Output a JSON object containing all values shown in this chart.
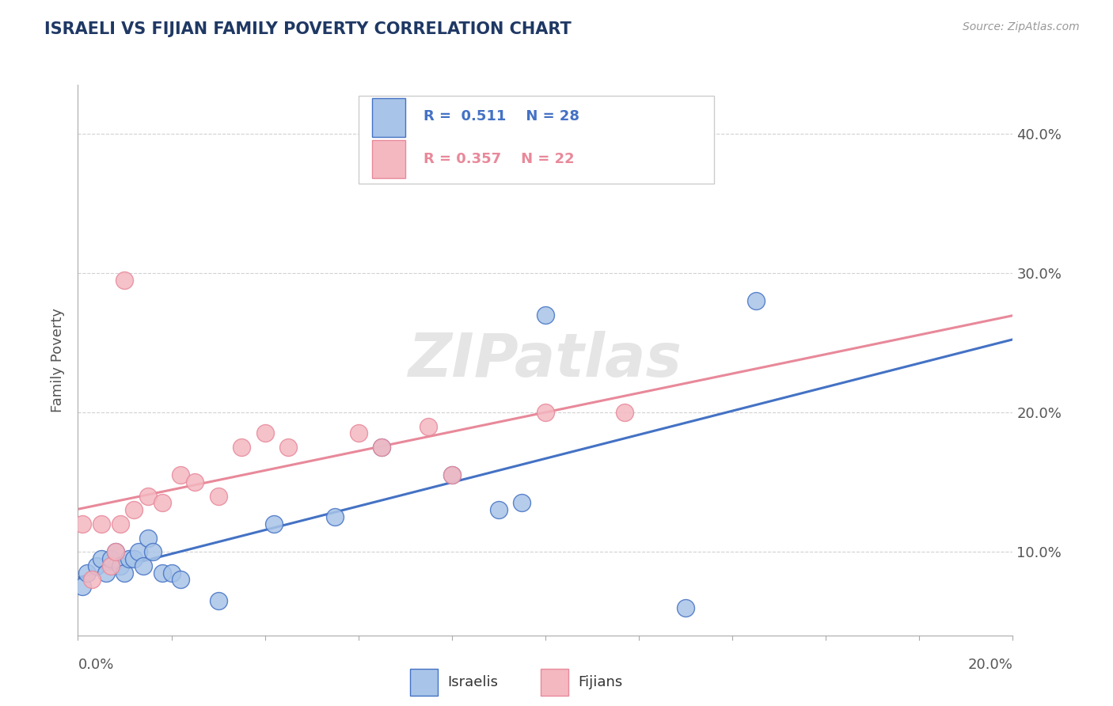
{
  "title": "ISRAELI VS FIJIAN FAMILY POVERTY CORRELATION CHART",
  "source": "Source: ZipAtlas.com",
  "ylabel": "Family Poverty",
  "r_israeli": 0.511,
  "n_israeli": 28,
  "r_fijian": 0.357,
  "n_fijian": 22,
  "xlim": [
    0.0,
    0.2
  ],
  "ylim": [
    0.04,
    0.435
  ],
  "yticks_right": [
    0.1,
    0.2,
    0.3,
    0.4
  ],
  "ytick_labels_right": [
    "10.0%",
    "20.0%",
    "30.0%",
    "40.0%"
  ],
  "color_israeli": "#A8C4E8",
  "color_fijian": "#F4B8C1",
  "color_israeli_line": "#4472C4",
  "color_fijian_line": "#E8899A",
  "color_title": "#1F3864",
  "israeli_x": [
    0.001,
    0.002,
    0.004,
    0.005,
    0.006,
    0.007,
    0.008,
    0.009,
    0.01,
    0.011,
    0.012,
    0.013,
    0.014,
    0.015,
    0.016,
    0.018,
    0.02,
    0.022,
    0.03,
    0.042,
    0.055,
    0.065,
    0.08,
    0.09,
    0.095,
    0.1,
    0.13,
    0.145
  ],
  "israeli_y": [
    0.075,
    0.085,
    0.09,
    0.095,
    0.085,
    0.095,
    0.1,
    0.09,
    0.085,
    0.095,
    0.095,
    0.1,
    0.09,
    0.11,
    0.1,
    0.085,
    0.085,
    0.08,
    0.065,
    0.12,
    0.125,
    0.175,
    0.155,
    0.13,
    0.135,
    0.27,
    0.06,
    0.28
  ],
  "fijian_x": [
    0.001,
    0.003,
    0.005,
    0.007,
    0.008,
    0.009,
    0.01,
    0.012,
    0.015,
    0.018,
    0.022,
    0.025,
    0.03,
    0.035,
    0.04,
    0.045,
    0.06,
    0.065,
    0.075,
    0.08,
    0.1,
    0.117
  ],
  "fijian_y": [
    0.12,
    0.08,
    0.12,
    0.09,
    0.1,
    0.12,
    0.295,
    0.13,
    0.14,
    0.135,
    0.155,
    0.15,
    0.14,
    0.175,
    0.185,
    0.175,
    0.185,
    0.175,
    0.19,
    0.155,
    0.2,
    0.2
  ]
}
